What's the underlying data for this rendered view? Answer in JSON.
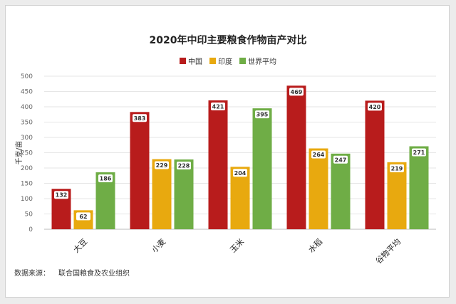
{
  "chart_data": {
    "type": "bar",
    "title": "2020年中印主要粮食作物亩产对比",
    "ylabel": "千克/亩",
    "xlabel": "",
    "ylim": [
      0,
      500
    ],
    "yticks": [
      0,
      50,
      100,
      150,
      200,
      250,
      300,
      350,
      400,
      450,
      500
    ],
    "categories": [
      "大豆",
      "小麦",
      "玉米",
      "水稻",
      "谷物平均"
    ],
    "series": [
      {
        "name": "中国",
        "color": "#b81c1c",
        "values": [
          132,
          383,
          421,
          469,
          420
        ]
      },
      {
        "name": "印度",
        "color": "#e8a90f",
        "values": [
          62,
          229,
          204,
          264,
          219
        ]
      },
      {
        "name": "世界平均",
        "color": "#6fad46",
        "values": [
          186,
          228,
          395,
          247,
          271
        ]
      }
    ],
    "legend_position": "top-center",
    "grid": true
  },
  "source": {
    "label": "数据来源：",
    "text": "联合国粮食及农业组织"
  }
}
